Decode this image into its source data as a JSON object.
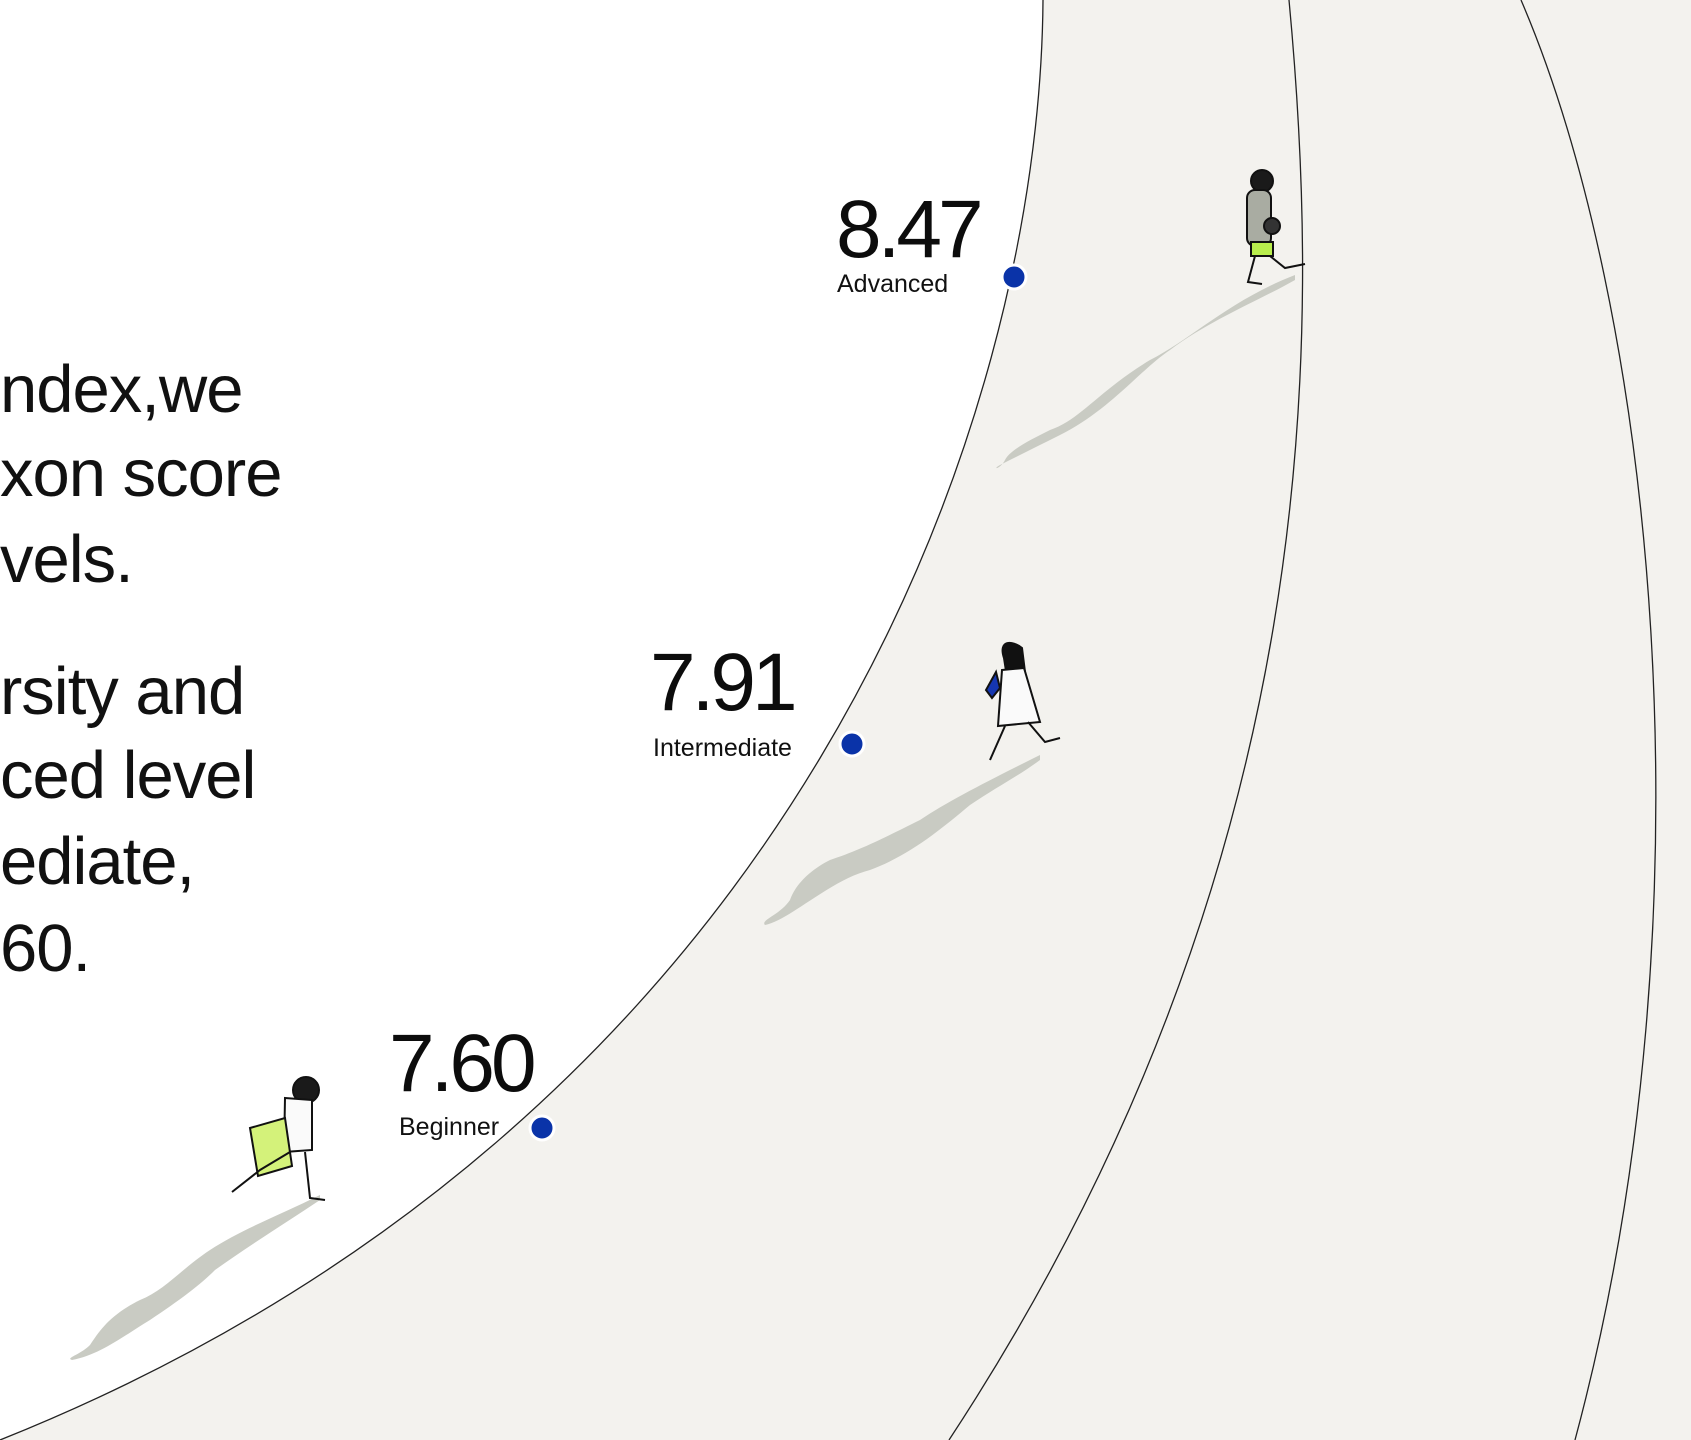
{
  "paragraphs": [
    [
      "ndex,we",
      "xon score",
      "vels."
    ],
    [
      "rsity and",
      "ced level",
      "ediate,",
      "60."
    ]
  ],
  "levels": [
    {
      "score": "8.47",
      "label": "Advanced"
    },
    {
      "score": "7.91",
      "label": "Intermediate"
    },
    {
      "score": "7.60",
      "label": "Beginner"
    }
  ]
}
